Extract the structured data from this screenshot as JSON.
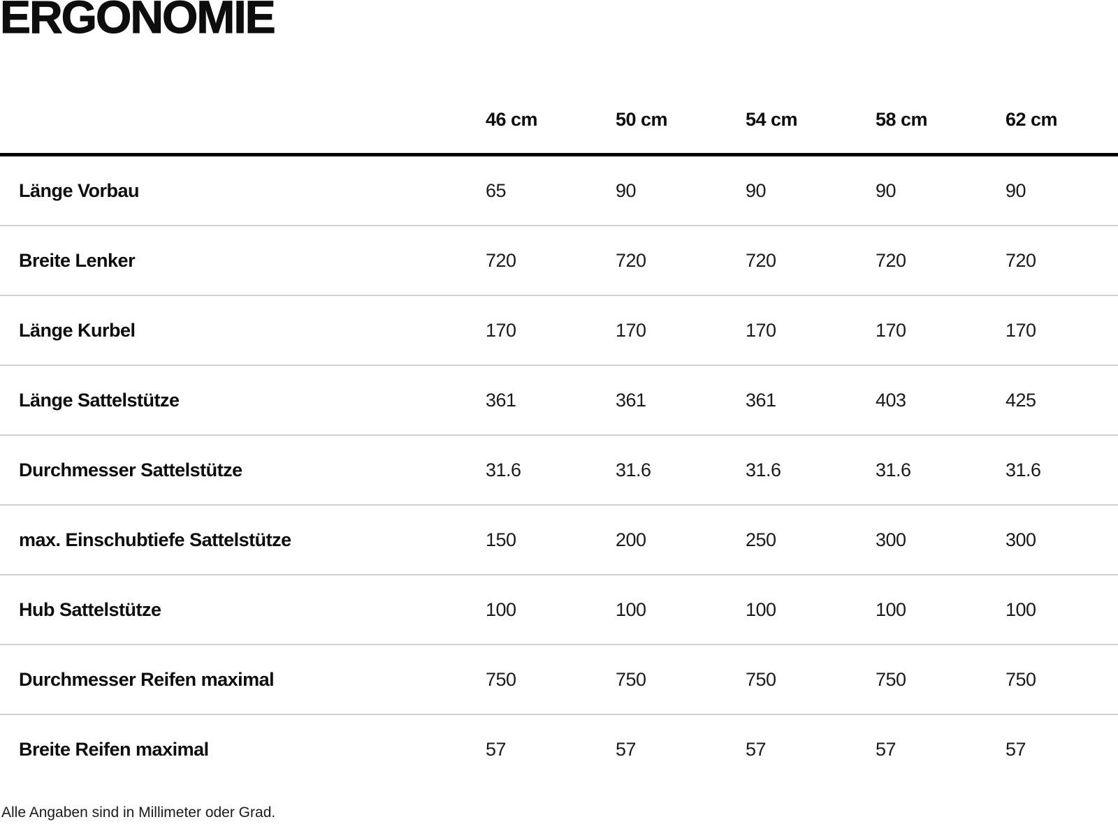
{
  "page": {
    "title": "ERGONOMIE",
    "footnote": "Alle Angaben sind in Millimeter oder Grad."
  },
  "table": {
    "columns": [
      "46 cm",
      "50 cm",
      "54 cm",
      "58 cm",
      "62 cm"
    ],
    "rows": [
      {
        "label": "Länge Vorbau",
        "values": [
          "65",
          "90",
          "90",
          "90",
          "90"
        ]
      },
      {
        "label": "Breite Lenker",
        "values": [
          "720",
          "720",
          "720",
          "720",
          "720"
        ]
      },
      {
        "label": "Länge Kurbel",
        "values": [
          "170",
          "170",
          "170",
          "170",
          "170"
        ]
      },
      {
        "label": "Länge Sattelstütze",
        "values": [
          "361",
          "361",
          "361",
          "403",
          "425"
        ]
      },
      {
        "label": "Durchmesser Sattelstütze",
        "values": [
          "31.6",
          "31.6",
          "31.6",
          "31.6",
          "31.6"
        ]
      },
      {
        "label": "max. Einschubtiefe Sattelstütze",
        "values": [
          "150",
          "200",
          "250",
          "300",
          "300"
        ]
      },
      {
        "label": "Hub Sattelstütze",
        "values": [
          "100",
          "100",
          "100",
          "100",
          "100"
        ]
      },
      {
        "label": "Durchmesser Reifen maximal",
        "values": [
          "750",
          "750",
          "750",
          "750",
          "750"
        ]
      },
      {
        "label": "Breite Reifen maximal",
        "values": [
          "57",
          "57",
          "57",
          "57",
          "57"
        ]
      }
    ]
  },
  "colors": {
    "text": "#0d0d0d",
    "header_rule": "#000000",
    "row_separator": "#cfd1d3",
    "background": "#ffffff"
  }
}
